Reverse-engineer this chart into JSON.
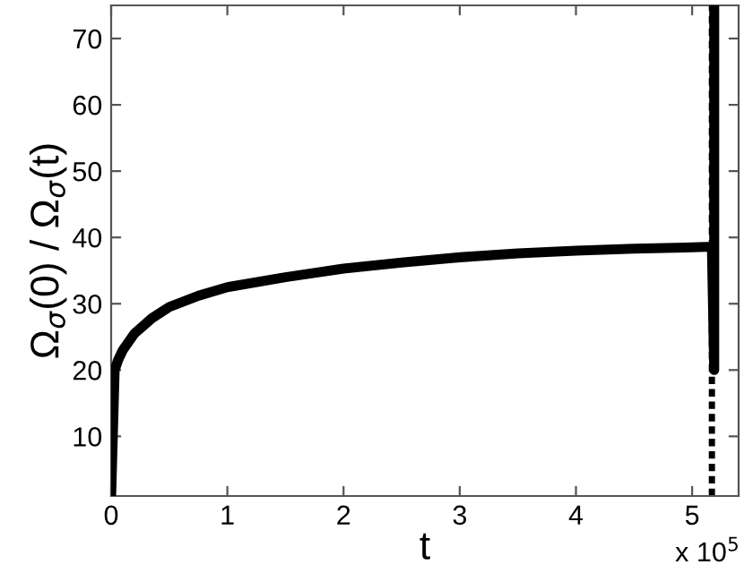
{
  "chart_data": {
    "type": "line",
    "xlabel": "t",
    "ylabel": "Ω$_{σ}$(0) / Ω$_{σ}$(t)",
    "series": [
      {
        "color": "#000000",
        "x": [
          0,
          0.03,
          0.06,
          0.1,
          0.2,
          0.35,
          0.5,
          0.75,
          1,
          1.5,
          2,
          2.5,
          3,
          3.5,
          4,
          4.5,
          5,
          5.17,
          5.19,
          5.19,
          5.19
        ],
        "values": [
          1,
          20,
          21.5,
          23,
          25.5,
          27.8,
          29.5,
          31.2,
          32.5,
          34,
          35.3,
          36.2,
          37,
          37.6,
          38,
          38.3,
          38.5,
          38.6,
          20,
          42,
          75
        ]
      }
    ],
    "ref_lines": [
      {
        "axis": "x",
        "value": 5.17,
        "color": "#000000",
        "line_style": "dashed"
      }
    ],
    "annotations": [
      "x 10$^{5}$"
    ],
    "xlim": [
      0,
      5.4
    ],
    "ylim": [
      1,
      75
    ],
    "xticks": [
      0,
      1,
      2,
      3,
      4,
      5
    ],
    "yticks": [
      10,
      20,
      30,
      40,
      50,
      60,
      70
    ],
    "line_style": "solid",
    "marker": "none",
    "grid": false,
    "legend": false
  }
}
